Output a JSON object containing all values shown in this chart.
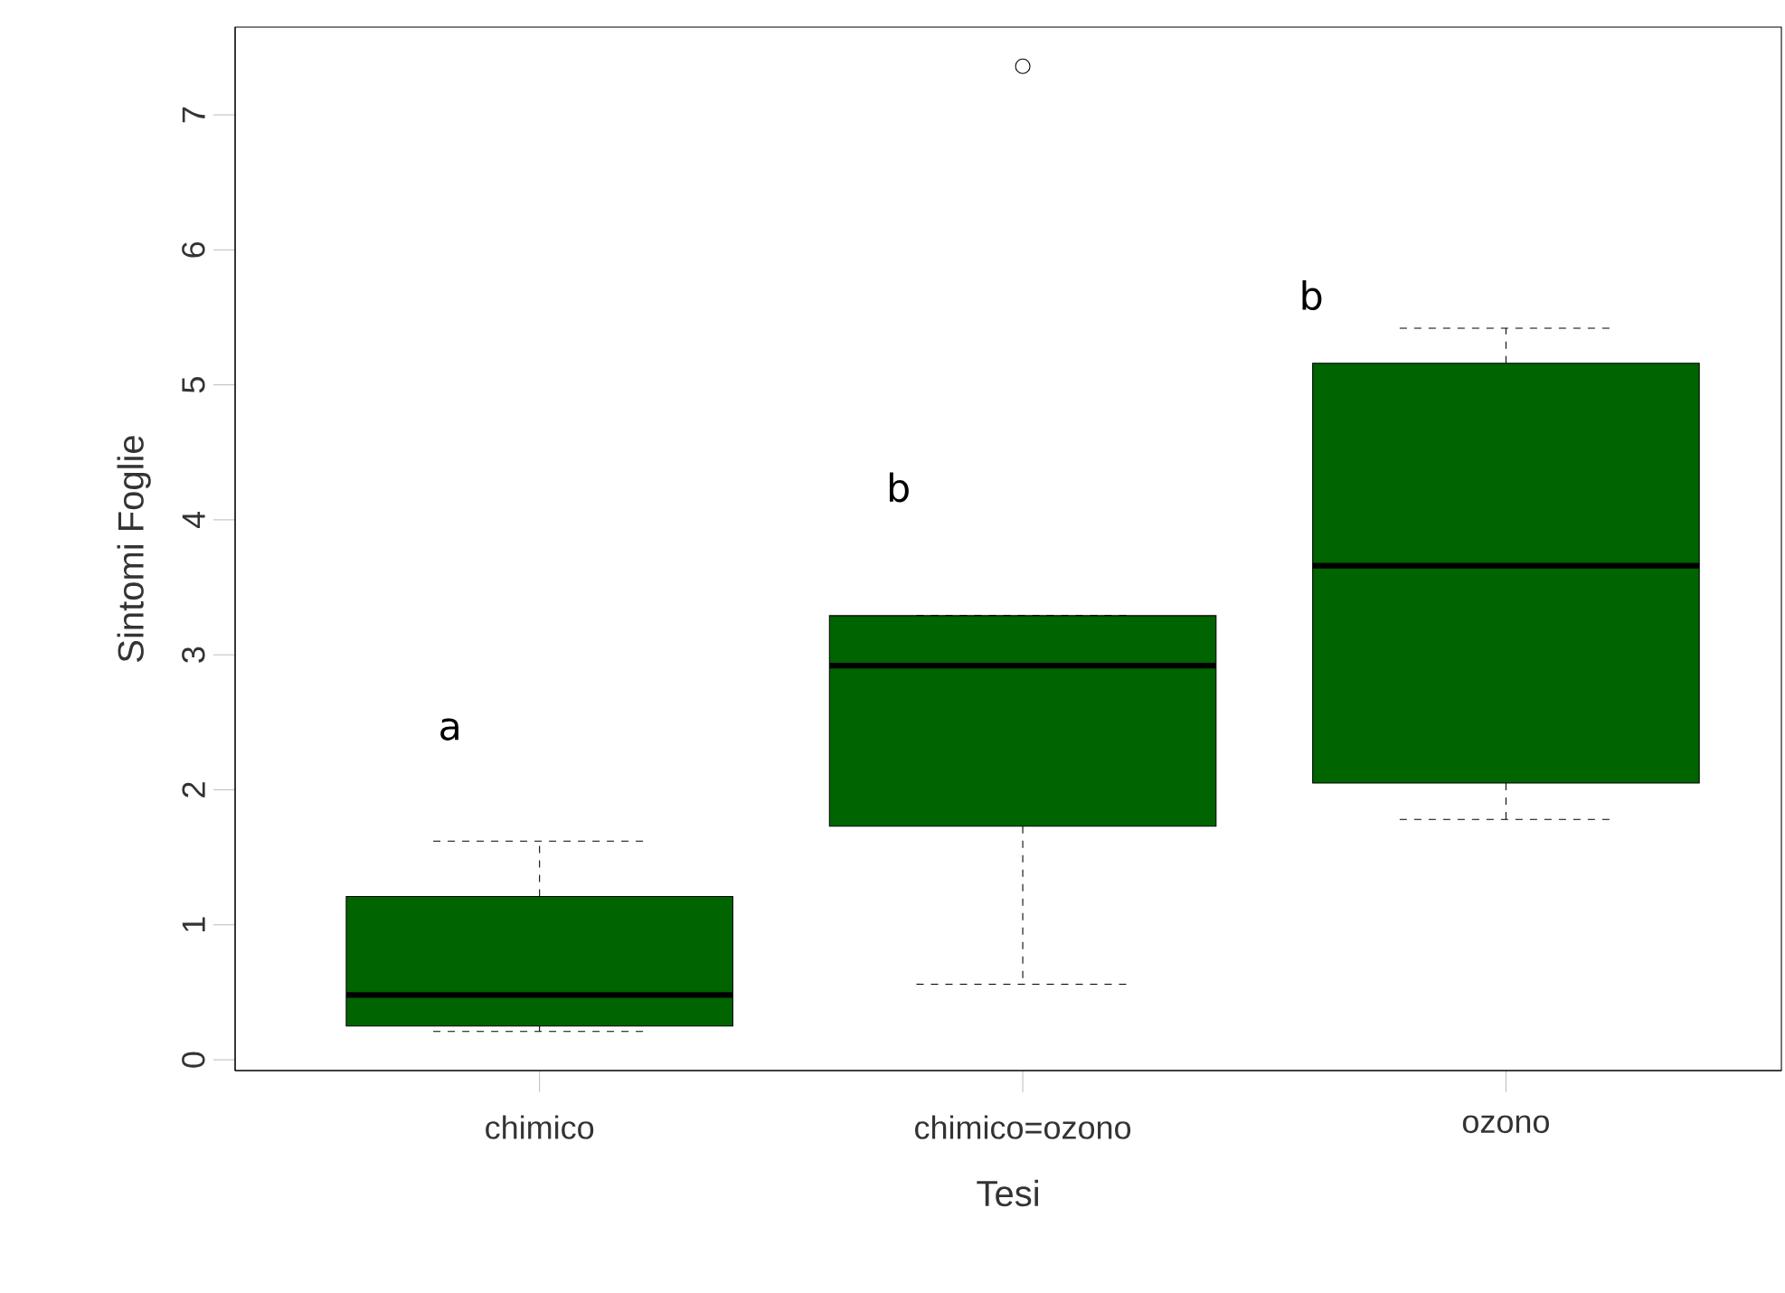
{
  "chart_data": {
    "type": "box",
    "xlabel": "Tesi",
    "ylabel": "Sintomi Foglie",
    "categories": [
      "chimico",
      "chimico=ozono",
      "ozono"
    ],
    "color": "#006400",
    "boxes": [
      {
        "low": 0.21,
        "q1": 0.25,
        "median": 0.48,
        "q3": 1.21,
        "high": 1.62
      },
      {
        "low": 0.56,
        "q1": 1.73,
        "median": 2.92,
        "q3": 3.29,
        "high": 3.29,
        "outliers": [
          7.36
        ]
      },
      {
        "low": 1.78,
        "q1": 2.05,
        "median": 3.66,
        "q3": 5.16,
        "high": 5.42
      }
    ],
    "ylim": [
      -0.08,
      7.65
    ],
    "yticks": [
      0,
      1,
      2,
      3,
      4,
      5,
      6,
      7
    ],
    "grid": false,
    "annotations": [
      "a",
      "b",
      "b"
    ]
  }
}
